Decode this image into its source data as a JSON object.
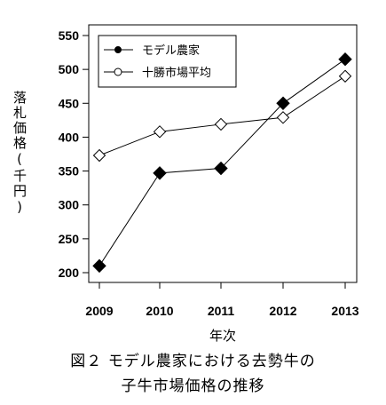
{
  "chart_data": {
    "type": "line",
    "x": [
      "2009",
      "2010",
      "2011",
      "2012",
      "2013"
    ],
    "series": [
      {
        "name": "モデル農家",
        "values": [
          210,
          347,
          354,
          450,
          515
        ],
        "marker": "filled-diamond",
        "color": "#000000"
      },
      {
        "name": "十勝市場平均",
        "values": [
          373,
          408,
          419,
          429,
          490
        ],
        "marker": "open-diamond",
        "color": "#000000"
      }
    ],
    "ylim": [
      200,
      550
    ],
    "yticks": [
      200,
      250,
      300,
      350,
      400,
      450,
      500,
      550
    ],
    "xlabel": "年次",
    "ylabel": "落札価格(千円)",
    "legend": "top-left",
    "grid": false
  },
  "caption": {
    "line1": "図２ モデル農家における去勢牛の",
    "line2": "子牛市場価格の推移"
  }
}
